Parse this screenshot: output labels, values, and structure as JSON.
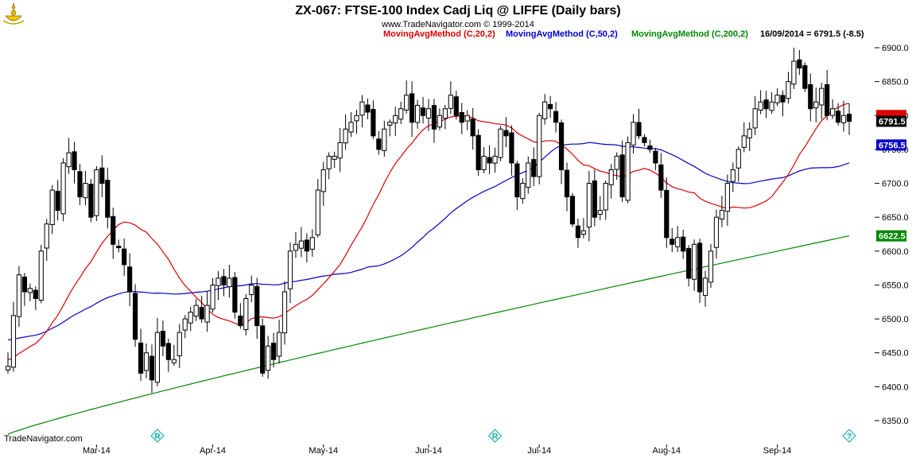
{
  "chart_data": {
    "type": "candlestick",
    "title": "ZX-067:  FTSE-100 Index Cadj Liq @ LIFFE  (Daily bars)",
    "subtitle": "www.TradeNavigator.com © 1999-2014",
    "legend": [
      {
        "label": "MovingAvgMethod (C,20,2)",
        "color": "#dd0000"
      },
      {
        "label": "MovingAvgMethod (C,50,2)",
        "color": "#0000cc"
      },
      {
        "label": "MovingAvgMethod (C,200,2)",
        "color": "#008800"
      }
    ],
    "last_value_text": "16/09/2014 = 6791.5 (-8.5)",
    "ylim": [
      6330,
      6925
    ],
    "y_ticks": [
      6350,
      6400,
      6450,
      6500,
      6550,
      6600,
      6650,
      6700,
      6750,
      6800,
      6850,
      6900
    ],
    "y_tick_labels": [
      "6350.0",
      "6400.0",
      "6450.0",
      "6500.0",
      "6550.0",
      "6600.0",
      "6650.0",
      "6700.0",
      "6750.0",
      "6800.0",
      "6850.0",
      "6900.0"
    ],
    "x_labels": [
      {
        "label": "Mar-14",
        "index": 16
      },
      {
        "label": "Apr-14",
        "index": 37
      },
      {
        "label": "May-14",
        "index": 57
      },
      {
        "label": "Jun-14",
        "index": 76
      },
      {
        "label": "Jul-14",
        "index": 96
      },
      {
        "label": "Aug-14",
        "index": 119
      },
      {
        "label": "Sep-14",
        "index": 139
      }
    ],
    "price_tags": [
      {
        "text": "6791.5",
        "value": 6791.5,
        "bg": "#000000"
      },
      {
        "text": "6756.5",
        "value": 6756.5,
        "bg": "#0000cc"
      },
      {
        "text": "6622.5",
        "value": 6622.5,
        "bg": "#008800"
      }
    ],
    "hidden_tag_value": 6800,
    "hidden_tag_color": "#dd0000",
    "markers": [
      {
        "symbol": "R",
        "index": 27
      },
      {
        "symbol": "R",
        "index": 88
      },
      {
        "symbol": "?",
        "index": 152
      }
    ],
    "closes": [
      6430,
      6505,
      6565,
      6540,
      6545,
      6530,
      6600,
      6640,
      6690,
      6660,
      6730,
      6745,
      6720,
      6680,
      6700,
      6650,
      6720,
      6700,
      6650,
      6610,
      6605,
      6580,
      6540,
      6470,
      6420,
      6450,
      6410,
      6480,
      6460,
      6440,
      6440,
      6480,
      6500,
      6510,
      6520,
      6500,
      6520,
      6550,
      6560,
      6550,
      6560,
      6510,
      6490,
      6530,
      6550,
      6490,
      6420,
      6460,
      6440,
      6480,
      6540,
      6600,
      6610,
      6615,
      6600,
      6620,
      6690,
      6720,
      6740,
      6740,
      6760,
      6780,
      6790,
      6800,
      6820,
      6805,
      6770,
      6750,
      6780,
      6790,
      6800,
      6810,
      6830,
      6790,
      6815,
      6800,
      6810,
      6780,
      6800,
      6810,
      6830,
      6800,
      6790,
      6800,
      6770,
      6720,
      6740,
      6730,
      6740,
      6780,
      6770,
      6730,
      6680,
      6700,
      6730,
      6710,
      6800,
      6820,
      6810,
      6790,
      6720,
      6680,
      6640,
      6620,
      6630,
      6700,
      6650,
      6660,
      6700,
      6720,
      6740,
      6680,
      6760,
      6790,
      6770,
      6760,
      6750,
      6730,
      6690,
      6620,
      6610,
      6620,
      6600,
      6560,
      6610,
      6540,
      6560,
      6600,
      6650,
      6660,
      6700,
      6720,
      6750,
      6770,
      6780,
      6810,
      6820,
      6810,
      6820,
      6830,
      6820,
      6850,
      6880,
      6870,
      6840,
      6810,
      6820,
      6840,
      6800,
      6810,
      6790,
      6800,
      6791.5
    ]
  }
}
